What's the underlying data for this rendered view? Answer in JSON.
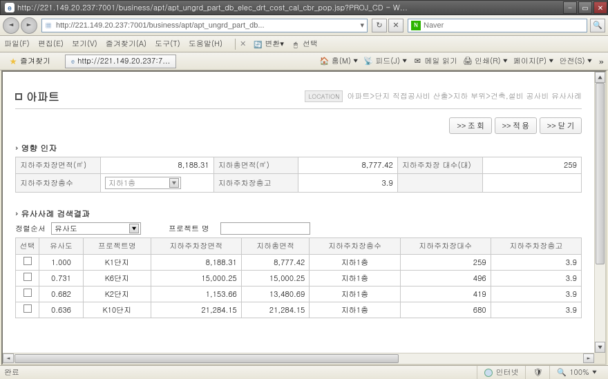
{
  "window": {
    "title": "http://221.149.20.237:7001/business/apt/apt_ungrd_part_db_elec_drt_cost_cal_cbr_pop.jsp?PROJ_CD - W..."
  },
  "address": {
    "url": "http://221.149.20.237:7001/business/apt/apt_ungrd_part_db..."
  },
  "search": {
    "engine": "Naver",
    "value": ""
  },
  "menu": {
    "file": "파일(F)",
    "edit": "편집(E)",
    "view": "보기(V)",
    "favorites": "즐겨찾기(A)",
    "tools": "도구(T)",
    "help": "도움말(H)",
    "convert": "변환",
    "select": "선택"
  },
  "favbar": {
    "favorites": "즐겨찾기",
    "tab": "http://221.149.20.237:7...",
    "home": "홈(M)",
    "feed": "피드(J)",
    "mail": "메일 읽기",
    "print": "인쇄(R)",
    "page": "페이지(P)",
    "safety": "안전(S)"
  },
  "page": {
    "title": "아파트",
    "loc_label": "LOCATION",
    "breadcrumb": "아파트>단지 직접공사비 산출>지하 부위>건축,설비 공사비 유사사례"
  },
  "buttons": {
    "search": ">> 조 회",
    "apply": ">> 적 용",
    "close": ">> 닫 기"
  },
  "factor": {
    "heading": "영향 인자",
    "labels": {
      "underground_parking_area": "지하주차장면적(㎡)",
      "underground_total_area": "지하총면적(㎡)",
      "underground_parking_count": "지하주차장 대수(대)",
      "underground_parking_floors": "지하주차장층수",
      "underground_parking_height": "지하주차장층고"
    },
    "values": {
      "underground_parking_area": "8,188.31",
      "underground_total_area": "8,777.42",
      "underground_parking_count": "259",
      "underground_parking_floors": "지하1층",
      "underground_parking_height": "3.9"
    }
  },
  "results": {
    "heading": "유사사례 검색결과",
    "sort_label": "정렬순서",
    "sort_value": "유사도",
    "proj_label": "프로젝트 명",
    "columns": {
      "select": "선택",
      "similarity": "유사도",
      "project": "프로젝트명",
      "parking_area": "지하주차장면적",
      "total_area": "지하총면적",
      "floors": "지하주차장층수",
      "count": "지하주차장대수",
      "height": "지하주차장층고"
    },
    "rows": [
      {
        "sim": "1.000",
        "proj": "K1단지",
        "pa": "8,188.31",
        "ta": "8,777.42",
        "fl": "지하1층",
        "cnt": "259",
        "h": "3.9"
      },
      {
        "sim": "0.731",
        "proj": "K6단지",
        "pa": "15,000.25",
        "ta": "15,000.25",
        "fl": "지하1층",
        "cnt": "496",
        "h": "3.9"
      },
      {
        "sim": "0.682",
        "proj": "K2단지",
        "pa": "1,153.66",
        "ta": "13,480.69",
        "fl": "지하1층",
        "cnt": "419",
        "h": "3.9"
      },
      {
        "sim": "0.636",
        "proj": "K10단지",
        "pa": "21,284.15",
        "ta": "21,284.15",
        "fl": "지하1층",
        "cnt": "680",
        "h": "3.9"
      }
    ]
  },
  "status": {
    "done": "완료",
    "internet": "인터넷",
    "zoom": "100%"
  }
}
